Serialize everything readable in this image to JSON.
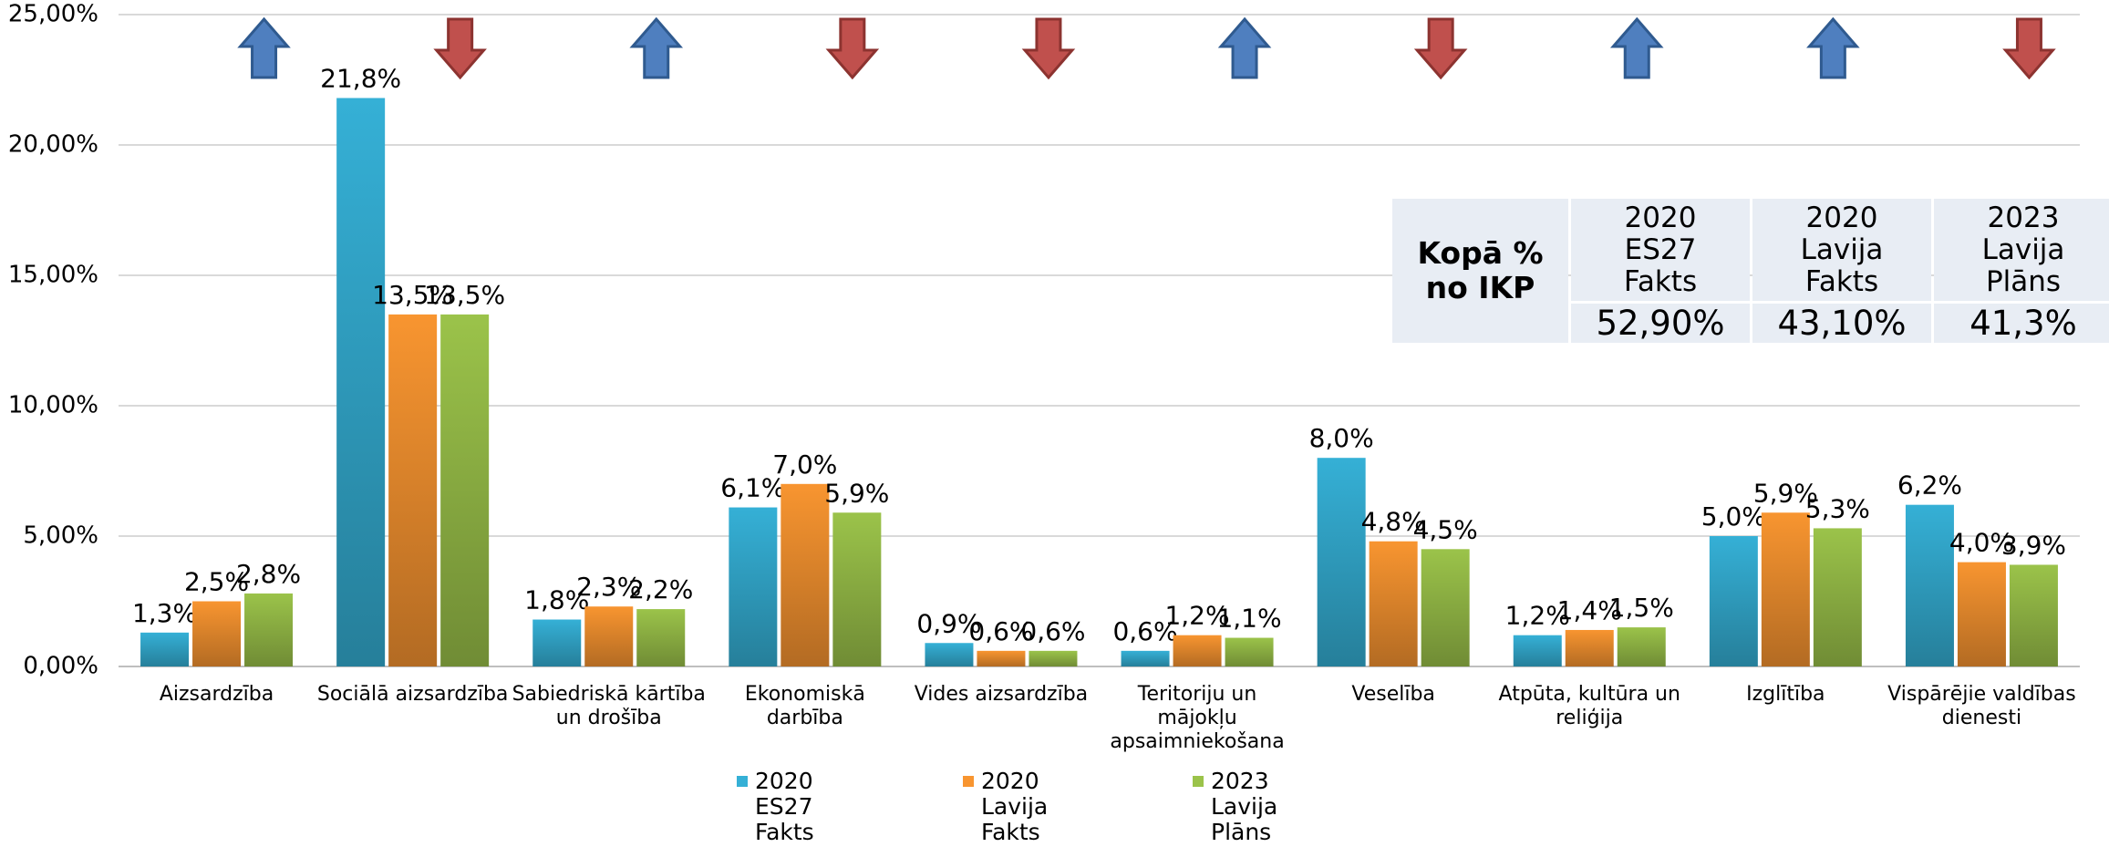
{
  "chart_data": {
    "type": "bar",
    "categories": [
      "Aizsardzība",
      "Sociālā aizsardzība",
      "Sabiedriskā kārtība un drošība",
      "Ekonomiskā darbība",
      "Vides aizsardzība",
      "Teritoriju un mājokļu apsaimniekošana",
      "Veselība",
      "Atpūta, kultūra un reliģija",
      "Izglītība",
      "Vispārējie valdības dienesti"
    ],
    "series": [
      {
        "name": "2020 ES27 Fakts",
        "color": "#35b0d6",
        "values": [
          1.3,
          21.8,
          1.8,
          6.1,
          0.9,
          0.6,
          8.0,
          1.2,
          5.0,
          6.2
        ],
        "value_labels": [
          "1,3%",
          "21,8%",
          "1,8%",
          "6,1%",
          "0,9%",
          "0,6%",
          "8,0%",
          "1,2%",
          "5,0%",
          "6,2%"
        ]
      },
      {
        "name": "2020 Lavija Fakts",
        "color": "#f89530",
        "values": [
          2.5,
          13.5,
          2.3,
          7.0,
          0.6,
          1.2,
          4.8,
          1.4,
          5.9,
          4.0
        ],
        "value_labels": [
          "2,5%",
          "13,5%",
          "2,3%",
          "7,0%",
          "0,6%",
          "1,2%",
          "4,8%",
          "1,4%",
          "5,9%",
          "4,0%"
        ]
      },
      {
        "name": "2023 Lavija Plāns",
        "color": "#9bc34a",
        "values": [
          2.8,
          13.5,
          2.2,
          5.9,
          0.6,
          1.1,
          4.5,
          1.5,
          5.3,
          3.9
        ],
        "value_labels": [
          "2,8%",
          "13,5%",
          "2,2%",
          "5,9%",
          "0,6%",
          "1,1%",
          "4,5%",
          "1,5%",
          "5,3%",
          "3,9%"
        ]
      }
    ],
    "ylim": [
      0,
      25
    ],
    "yticks": [
      {
        "value": 0,
        "label": "0,00%"
      },
      {
        "value": 5,
        "label": "5,00%"
      },
      {
        "value": 10,
        "label": "10,00%"
      },
      {
        "value": 15,
        "label": "15,00%"
      },
      {
        "value": 20,
        "label": "20,00%"
      },
      {
        "value": 25,
        "label": "25,00%"
      }
    ],
    "grid": true,
    "legend": "bottom",
    "trend_arrows": [
      "up",
      "down",
      "up",
      "down",
      "down",
      "up",
      "down",
      "up",
      "up",
      "down"
    ],
    "summary_table": {
      "title": "Kopā % no IKP",
      "values": [
        "52,90%",
        "43,10%",
        "41,3%"
      ]
    }
  }
}
